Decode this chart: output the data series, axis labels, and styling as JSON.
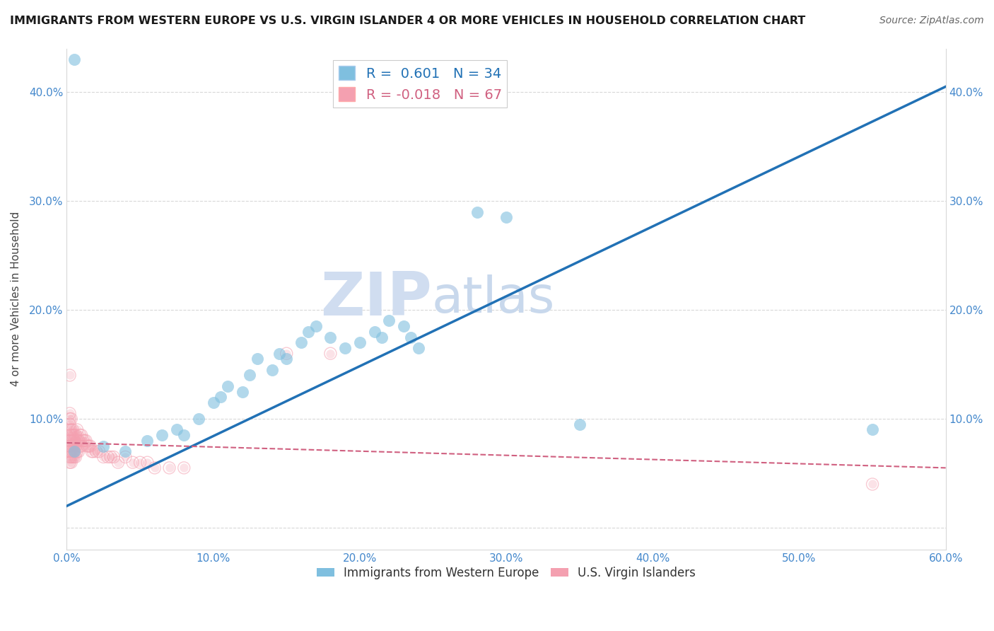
{
  "title": "IMMIGRANTS FROM WESTERN EUROPE VS U.S. VIRGIN ISLANDER 4 OR MORE VEHICLES IN HOUSEHOLD CORRELATION CHART",
  "source": "Source: ZipAtlas.com",
  "ylabel": "4 or more Vehicles in Household",
  "xlim": [
    0.0,
    0.6
  ],
  "ylim": [
    -0.02,
    0.44
  ],
  "xticks": [
    0.0,
    0.1,
    0.2,
    0.3,
    0.4,
    0.5,
    0.6
  ],
  "xticklabels": [
    "0.0%",
    "10.0%",
    "20.0%",
    "30.0%",
    "40.0%",
    "50.0%",
    "60.0%"
  ],
  "yticks": [
    0.0,
    0.1,
    0.2,
    0.3,
    0.4
  ],
  "yticklabels": [
    "",
    "10.0%",
    "20.0%",
    "30.0%",
    "40.0%"
  ],
  "blue_R": 0.601,
  "blue_N": 34,
  "pink_R": -0.018,
  "pink_N": 67,
  "watermark_zip": "ZIP",
  "watermark_atlas": "atlas",
  "watermark_color_zip": "#d0ddf0",
  "watermark_color_atlas": "#c8d8ec",
  "blue_color": "#7fbfdf",
  "blue_line_color": "#2171b5",
  "pink_color": "#f4a0b0",
  "pink_line_color": "#d06080",
  "tick_color": "#4488cc",
  "blue_scatter_x": [
    0.005,
    0.025,
    0.04,
    0.055,
    0.065,
    0.075,
    0.08,
    0.09,
    0.1,
    0.105,
    0.11,
    0.12,
    0.125,
    0.13,
    0.14,
    0.145,
    0.15,
    0.16,
    0.165,
    0.17,
    0.18,
    0.19,
    0.2,
    0.21,
    0.215,
    0.22,
    0.23,
    0.235,
    0.24,
    0.28,
    0.3,
    0.35,
    0.55,
    0.005
  ],
  "blue_scatter_y": [
    0.07,
    0.075,
    0.07,
    0.08,
    0.085,
    0.09,
    0.085,
    0.1,
    0.115,
    0.12,
    0.13,
    0.125,
    0.14,
    0.155,
    0.145,
    0.16,
    0.155,
    0.17,
    0.18,
    0.185,
    0.175,
    0.165,
    0.17,
    0.18,
    0.175,
    0.19,
    0.185,
    0.175,
    0.165,
    0.29,
    0.285,
    0.095,
    0.09,
    0.43
  ],
  "pink_scatter_x": [
    0.002,
    0.002,
    0.002,
    0.002,
    0.002,
    0.002,
    0.002,
    0.002,
    0.002,
    0.002,
    0.002,
    0.003,
    0.003,
    0.003,
    0.003,
    0.003,
    0.003,
    0.003,
    0.003,
    0.004,
    0.004,
    0.004,
    0.004,
    0.004,
    0.004,
    0.005,
    0.005,
    0.005,
    0.005,
    0.005,
    0.006,
    0.006,
    0.006,
    0.007,
    0.007,
    0.007,
    0.008,
    0.008,
    0.009,
    0.009,
    0.01,
    0.01,
    0.011,
    0.012,
    0.013,
    0.014,
    0.015,
    0.016,
    0.017,
    0.018,
    0.02,
    0.022,
    0.025,
    0.028,
    0.03,
    0.032,
    0.035,
    0.04,
    0.045,
    0.05,
    0.055,
    0.06,
    0.07,
    0.08,
    0.15,
    0.18,
    0.55
  ],
  "pink_scatter_y": [
    0.06,
    0.065,
    0.07,
    0.075,
    0.08,
    0.085,
    0.09,
    0.095,
    0.1,
    0.105,
    0.14,
    0.06,
    0.065,
    0.07,
    0.075,
    0.08,
    0.085,
    0.09,
    0.1,
    0.065,
    0.07,
    0.075,
    0.08,
    0.085,
    0.09,
    0.065,
    0.07,
    0.075,
    0.08,
    0.085,
    0.065,
    0.075,
    0.085,
    0.07,
    0.08,
    0.09,
    0.07,
    0.08,
    0.075,
    0.085,
    0.075,
    0.085,
    0.08,
    0.08,
    0.08,
    0.075,
    0.075,
    0.075,
    0.07,
    0.07,
    0.07,
    0.07,
    0.065,
    0.065,
    0.065,
    0.065,
    0.06,
    0.065,
    0.06,
    0.06,
    0.06,
    0.055,
    0.055,
    0.055,
    0.16,
    0.16,
    0.04
  ],
  "blue_line_x0": 0.0,
  "blue_line_y0": 0.02,
  "blue_line_x1": 0.6,
  "blue_line_y1": 0.405,
  "pink_line_x0": 0.0,
  "pink_line_y0": 0.078,
  "pink_line_x1": 0.6,
  "pink_line_y1": 0.055,
  "background_color": "#ffffff",
  "grid_color": "#d8d8d8"
}
